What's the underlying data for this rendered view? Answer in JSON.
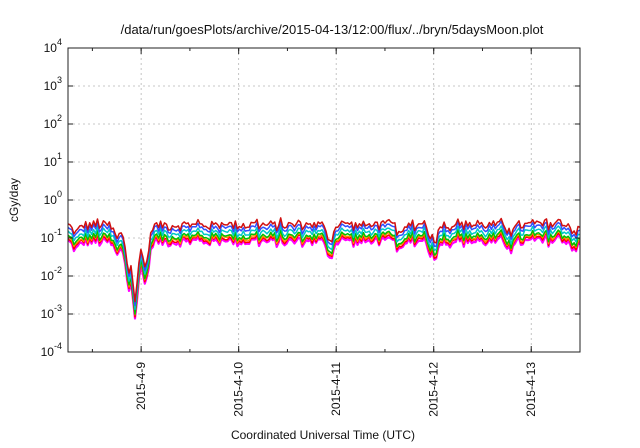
{
  "chart_data": {
    "type": "line",
    "title": "/data/run/goesPlots/archive/2015-04-13/12:00/flux/../bryn/5daysMoon.plot",
    "xlabel": "Coordinated Universal Time (UTC)",
    "ylabel": "cGy/day",
    "yscale": "log",
    "ylim": [
      0.0001,
      10000
    ],
    "xlim": [
      "2015-04-08 06:00",
      "2015-04-13 12:00"
    ],
    "grid": true,
    "x_ticks": [
      {
        "label": "2015-4-9",
        "value": "2015-04-09 00:00"
      },
      {
        "label": "2015-4-10",
        "value": "2015-04-10 00:00"
      },
      {
        "label": "2015-4-11",
        "value": "2015-04-11 00:00"
      },
      {
        "label": "2015-4-12",
        "value": "2015-04-12 00:00"
      },
      {
        "label": "2015-4-13",
        "value": "2015-04-13 00:00"
      }
    ],
    "y_ticks": [
      {
        "base": "10",
        "exp": "4",
        "value": 10000
      },
      {
        "base": "10",
        "exp": "3",
        "value": 1000
      },
      {
        "base": "10",
        "exp": "2",
        "value": 100
      },
      {
        "base": "10",
        "exp": "1",
        "value": 10
      },
      {
        "base": "10",
        "exp": "0",
        "value": 1
      },
      {
        "base": "10",
        "exp": "-1",
        "value": 0.1
      },
      {
        "base": "10",
        "exp": "-2",
        "value": 0.01
      },
      {
        "base": "10",
        "exp": "-3",
        "value": 0.001
      },
      {
        "base": "10",
        "exp": "-4",
        "value": 0.0001
      }
    ],
    "series": [
      {
        "color": "#ff00ff",
        "baseline": 0.08
      },
      {
        "color": "#ff0000",
        "baseline": 0.09
      },
      {
        "color": "#ff8c00",
        "baseline": 0.1
      },
      {
        "color": "#00c000",
        "baseline": 0.11
      },
      {
        "color": "#00c8c8",
        "baseline": 0.14
      },
      {
        "color": "#3050ff",
        "baseline": 0.18
      },
      {
        "color": "#d01010",
        "baseline": 0.22
      }
    ],
    "dips": [
      {
        "time": "2015-04-08 08:00",
        "value": 0.05
      },
      {
        "time": "2015-04-08 18:00",
        "value": 0.03
      },
      {
        "time": "2015-04-08 21:00",
        "value": 0.003
      },
      {
        "time": "2015-04-08 22:30",
        "value": 0.0006
      },
      {
        "time": "2015-04-09 01:00",
        "value": 0.005
      },
      {
        "time": "2015-04-10 22:30",
        "value": 0.03
      },
      {
        "time": "2015-04-11 16:00",
        "value": 0.04
      },
      {
        "time": "2015-04-12 00:00",
        "value": 0.025
      },
      {
        "time": "2015-04-12 19:00",
        "value": 0.05
      },
      {
        "time": "2015-04-13 11:00",
        "value": 0.05
      }
    ]
  }
}
